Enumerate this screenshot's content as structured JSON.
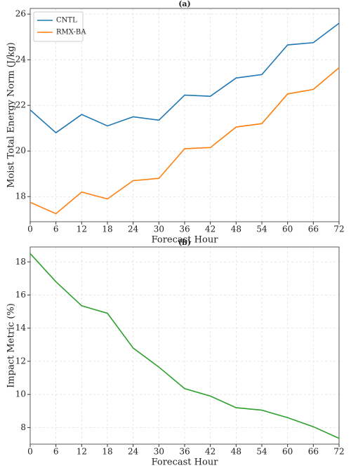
{
  "chart_data": [
    {
      "type": "line",
      "title": "(a)",
      "xlabel": "Forecast Hour",
      "ylabel": "Moist Total Energy Norm (J/kg)",
      "x": [
        0,
        6,
        12,
        18,
        24,
        30,
        36,
        42,
        48,
        54,
        60,
        66,
        72
      ],
      "xlim": [
        0,
        72
      ],
      "xticks": [
        0,
        6,
        12,
        18,
        24,
        30,
        36,
        42,
        48,
        54,
        60,
        66,
        72
      ],
      "ylim": [
        16.9,
        26.25
      ],
      "yticks": [
        18,
        20,
        22,
        24,
        26
      ],
      "grid": true,
      "legend": "upper left",
      "series": [
        {
          "name": "CNTL",
          "color": "#1f77b4",
          "values": [
            21.8,
            20.8,
            21.6,
            21.1,
            21.5,
            21.35,
            22.45,
            22.4,
            23.2,
            23.35,
            24.65,
            24.75,
            25.6
          ]
        },
        {
          "name": "RMX-BA",
          "color": "#ff7f0e",
          "values": [
            17.75,
            17.25,
            18.2,
            17.9,
            18.7,
            18.8,
            20.1,
            20.15,
            21.05,
            21.2,
            22.5,
            22.7,
            23.65
          ]
        }
      ]
    },
    {
      "type": "line",
      "title": "(b)",
      "xlabel": "Forecast Hour",
      "ylabel": "Impact Metric (%)",
      "x": [
        0,
        6,
        12,
        18,
        24,
        30,
        36,
        42,
        48,
        54,
        60,
        66,
        72
      ],
      "xlim": [
        0,
        72
      ],
      "xticks": [
        0,
        6,
        12,
        18,
        24,
        30,
        36,
        42,
        48,
        54,
        60,
        66,
        72
      ],
      "ylim": [
        7.0,
        18.9
      ],
      "yticks": [
        8,
        10,
        12,
        14,
        16,
        18
      ],
      "grid": true,
      "series": [
        {
          "color": "#2ca02c",
          "values": [
            18.5,
            16.8,
            15.35,
            14.9,
            12.8,
            11.65,
            10.35,
            9.9,
            9.2,
            9.05,
            8.6,
            8.05,
            7.35
          ]
        }
      ]
    }
  ]
}
